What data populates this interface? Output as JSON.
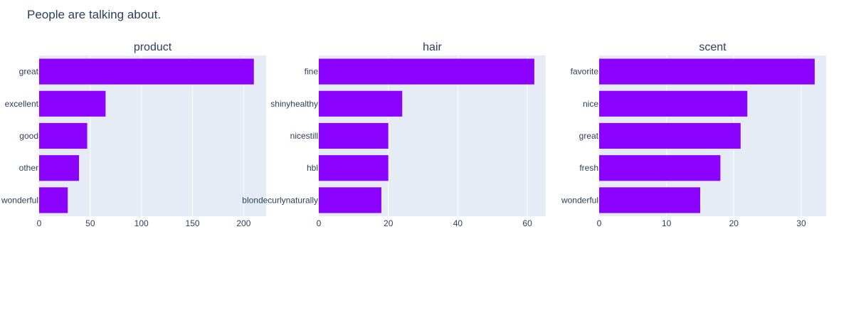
{
  "title": "People are talking about.",
  "colors": {
    "bar": "#8c02ff",
    "plot_bg": "#e5ecf6",
    "grid": "#ffffff",
    "text": "#2a3f5f"
  },
  "chart_data": [
    {
      "type": "bar",
      "orientation": "horizontal",
      "title": "product",
      "categories": [
        "great",
        "excellent",
        "good",
        "other",
        "wonderful"
      ],
      "values": [
        210,
        65,
        47,
        39,
        28
      ],
      "xlim": [
        0,
        222
      ],
      "xticks": [
        0,
        50,
        100,
        150,
        200
      ],
      "xlabel": "",
      "ylabel": "",
      "grid": true
    },
    {
      "type": "bar",
      "orientation": "horizontal",
      "title": "hair",
      "categories": [
        "fine",
        "shinyhealthy",
        "nicestill",
        "hbl",
        "blondecurlynaturally"
      ],
      "values": [
        62,
        24,
        20,
        20,
        18
      ],
      "xlim": [
        0,
        65.3
      ],
      "xticks": [
        0,
        20,
        40,
        60
      ],
      "xlabel": "",
      "ylabel": "",
      "grid": true
    },
    {
      "type": "bar",
      "orientation": "horizontal",
      "title": "scent",
      "categories": [
        "favorite",
        "nice",
        "great",
        "fresh",
        "wonderful"
      ],
      "values": [
        32,
        22,
        21,
        18,
        15
      ],
      "xlim": [
        0,
        33.7
      ],
      "xticks": [
        0,
        10,
        20,
        30
      ],
      "xlabel": "",
      "ylabel": "",
      "grid": true
    }
  ]
}
